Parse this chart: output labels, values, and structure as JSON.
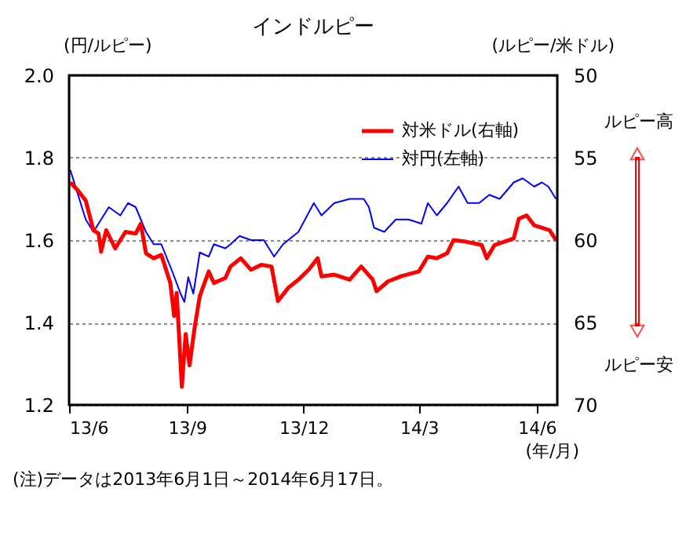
{
  "chart_data": {
    "type": "line",
    "title": "インドルピー",
    "ylabel": "(円/ルピー)",
    "y2label": "(ルピー/米ドル)",
    "xlabel": "(年/月)",
    "xlim": [
      "2013-06-01",
      "2014-06-17"
    ],
    "xticks": [
      {
        "value": "2013-06-01",
        "label": "13/6"
      },
      {
        "value": "2013-09-01",
        "label": "13/9"
      },
      {
        "value": "2013-12-01",
        "label": "13/12"
      },
      {
        "value": "2014-03-01",
        "label": "14/3"
      },
      {
        "value": "2014-06-01",
        "label": "14/6"
      }
    ],
    "ylim": [
      1.2,
      2.0
    ],
    "yticks": [
      1.2,
      1.4,
      1.6,
      1.8,
      {
        "value": 2.0,
        "label": "2.0"
      }
    ],
    "y2lim": [
      70,
      50
    ],
    "y2ticks": [
      50,
      55,
      60,
      65,
      70
    ],
    "grid": "y",
    "legend": "top right",
    "line_style": "solid",
    "series": [
      {
        "name": "対米ドル(右軸)",
        "color": "#ff0000",
        "axis": "y2",
        "x": [
          "2013-06-02",
          "2013-06-08",
          "2013-06-14",
          "2013-06-20",
          "2013-06-24",
          "2013-06-26",
          "2013-06-30",
          "2013-07-07",
          "2013-07-15",
          "2013-07-23",
          "2013-07-27",
          "2013-07-31",
          "2013-08-06",
          "2013-08-12",
          "2013-08-19",
          "2013-08-22",
          "2013-08-24",
          "2013-08-28",
          "2013-08-31",
          "2013-09-03",
          "2013-09-07",
          "2013-09-11",
          "2013-09-18",
          "2013-09-22",
          "2013-10-01",
          "2013-10-05",
          "2013-10-13",
          "2013-10-21",
          "2013-10-29",
          "2013-11-06",
          "2013-11-11",
          "2013-11-19",
          "2013-11-27",
          "2013-12-05",
          "2013-12-12",
          "2013-12-15",
          "2013-12-25",
          "2014-01-06",
          "2014-01-15",
          "2014-01-24",
          "2014-01-27",
          "2014-02-05",
          "2014-02-15",
          "2014-03-01",
          "2014-03-08",
          "2014-03-15",
          "2014-03-23",
          "2014-03-28",
          "2014-04-07",
          "2014-04-19",
          "2014-04-23",
          "2014-04-29",
          "2014-05-14",
          "2014-05-18",
          "2014-05-24",
          "2014-05-30",
          "2014-06-11",
          "2014-06-16"
        ],
        "values": [
          56.5,
          57.0,
          57.6,
          59.4,
          59.6,
          60.7,
          59.4,
          60.5,
          59.5,
          59.6,
          59.0,
          60.8,
          61.1,
          60.9,
          62.6,
          64.6,
          63.2,
          68.9,
          65.7,
          67.6,
          65.3,
          63.4,
          61.9,
          62.6,
          62.3,
          61.6,
          61.1,
          61.8,
          61.5,
          61.6,
          63.7,
          62.9,
          62.4,
          61.8,
          61.1,
          62.2,
          62.1,
          62.4,
          61.6,
          62.4,
          63.1,
          62.5,
          62.2,
          61.9,
          61.0,
          61.1,
          60.8,
          60.0,
          60.1,
          60.3,
          61.1,
          60.3,
          59.9,
          58.7,
          58.5,
          59.1,
          59.4,
          60.0
        ]
      },
      {
        "name": "対円(左軸)",
        "color": "#0000ff",
        "axis": "y",
        "x": [
          "2013-06-02",
          "2013-06-08",
          "2013-06-14",
          "2013-06-20",
          "2013-06-26",
          "2013-07-02",
          "2013-07-11",
          "2013-07-17",
          "2013-07-23",
          "2013-07-31",
          "2013-08-06",
          "2013-08-12",
          "2013-08-21",
          "2013-08-27",
          "2013-08-30",
          "2013-09-02",
          "2013-09-06",
          "2013-09-11",
          "2013-09-18",
          "2013-09-22",
          "2013-10-01",
          "2013-10-05",
          "2013-10-12",
          "2013-10-21",
          "2013-10-31",
          "2013-11-08",
          "2013-11-15",
          "2013-11-27",
          "2013-12-09",
          "2013-12-15",
          "2013-12-25",
          "2014-01-06",
          "2014-01-17",
          "2014-01-21",
          "2014-01-25",
          "2014-02-02",
          "2014-02-11",
          "2014-02-21",
          "2014-03-03",
          "2014-03-08",
          "2014-03-15",
          "2014-03-23",
          "2014-04-01",
          "2014-04-08",
          "2014-04-17",
          "2014-04-25",
          "2014-05-03",
          "2014-05-14",
          "2014-05-21",
          "2014-05-30",
          "2014-06-05",
          "2014-06-10",
          "2014-06-16"
        ],
        "values": [
          1.77,
          1.71,
          1.65,
          1.62,
          1.65,
          1.68,
          1.66,
          1.69,
          1.68,
          1.62,
          1.59,
          1.59,
          1.52,
          1.47,
          1.45,
          1.51,
          1.47,
          1.57,
          1.56,
          1.59,
          1.58,
          1.59,
          1.61,
          1.6,
          1.6,
          1.56,
          1.59,
          1.62,
          1.69,
          1.66,
          1.69,
          1.7,
          1.7,
          1.68,
          1.63,
          1.62,
          1.65,
          1.65,
          1.64,
          1.69,
          1.66,
          1.69,
          1.73,
          1.69,
          1.69,
          1.71,
          1.7,
          1.74,
          1.75,
          1.73,
          1.74,
          1.73,
          1.7
        ]
      }
    ],
    "annotations": [
      "ルピー高",
      "ルピー安",
      "(注)データは2013年6月1日～2014年6月17日。"
    ]
  }
}
